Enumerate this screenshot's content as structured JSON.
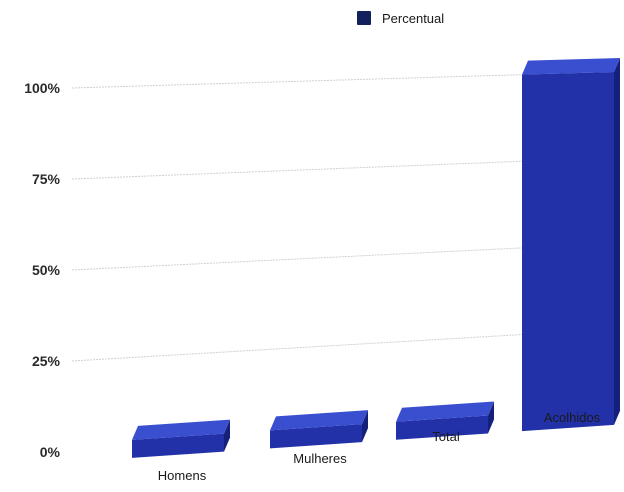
{
  "chart_data": {
    "type": "bar",
    "categories": [
      "Homens",
      "Mulheres",
      "Total",
      "Acolhidos"
    ],
    "series": [
      {
        "name": "Percentual",
        "values": [
          3,
          3,
          4,
          100
        ]
      }
    ],
    "ylim": [
      0,
      100
    ],
    "yticks": [
      "0%",
      "25%",
      "50%",
      "75%",
      "100%"
    ],
    "grid": true,
    "legend_position": "top",
    "colors": {
      "bar": "#2231a8",
      "bar_top": "#3a4fd0",
      "bar_side": "#14207a",
      "grid": "#d0d0d0",
      "legend_swatch": "#12205c"
    }
  }
}
